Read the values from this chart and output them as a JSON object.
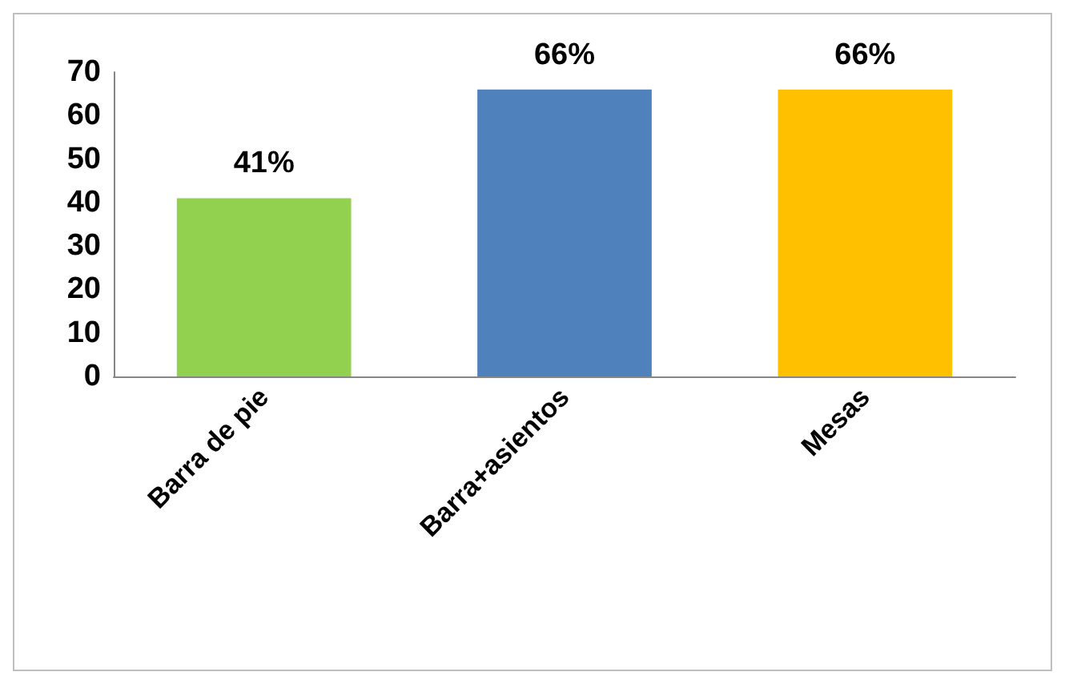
{
  "chart_data": {
    "type": "bar",
    "categories": [
      "Barra de pie",
      "Barra+asientos",
      "Mesas"
    ],
    "values": [
      41,
      66,
      66
    ],
    "colors": [
      "#92d050",
      "#4f81bd",
      "#ffc000"
    ],
    "value_labels": [
      "41%",
      "66%",
      "66%"
    ],
    "ylim": [
      0,
      70
    ],
    "yticks": [
      0,
      10,
      20,
      30,
      40,
      50,
      60,
      70
    ],
    "grid": false
  }
}
